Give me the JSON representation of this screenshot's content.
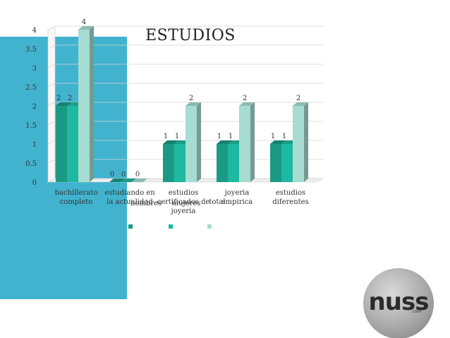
{
  "chart_data": {
    "type": "bar",
    "title": "ESTUDIOS",
    "categories": [
      "bachillerato completo",
      "estudiando en la actualidad",
      "estudios certificados de joyeria",
      "joyeria empirica",
      "estudios diferentes"
    ],
    "category_lines": [
      [
        "bachillerato",
        "completo"
      ],
      [
        "estudiando en",
        "la actualidad"
      ],
      [
        "estudios",
        "certificados de",
        "joyeria"
      ],
      [
        "joyeria",
        "empirica"
      ],
      [
        "estudios",
        "diferentes"
      ]
    ],
    "series": [
      {
        "name": "hombres",
        "values": [
          2,
          0,
          1,
          1,
          1
        ]
      },
      {
        "name": "mujeres",
        "values": [
          2,
          0,
          1,
          1,
          1
        ]
      },
      {
        "name": "total",
        "values": [
          4,
          0,
          2,
          2,
          2
        ]
      }
    ],
    "ylim": [
      0,
      4
    ],
    "yticks": [
      "0",
      "0.5",
      "1",
      "1.5",
      "2",
      "2.5",
      "3",
      "3.5",
      "4"
    ],
    "grid": true,
    "legend": "bottom",
    "colors": [
      "#1a9a85",
      "#1fb8a0",
      "#a6dcd2"
    ]
  },
  "watermark": {
    "text": "nuss",
    "sub": ".com"
  }
}
